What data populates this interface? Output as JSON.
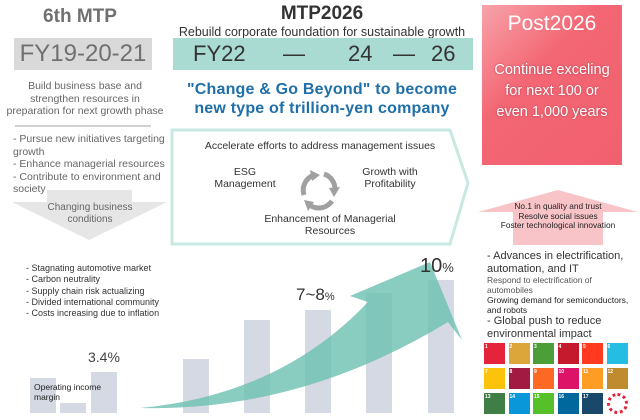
{
  "left": {
    "title": "6th MTP",
    "period": "FY19-20-21",
    "description": "Build business base and strengthen resources in preparation for next growth phase",
    "items": [
      "- Pursue new initiatives targeting growth",
      "- Enhance managerial resources",
      "- Contribute to environment and society"
    ],
    "changing_label": "Changing business conditions",
    "conditions": [
      "- Stagnating automotive market",
      "- Carbon neutrality",
      "- Supply chain risk actualizing",
      "- Divided international community",
      "- Costs increasing due to inflation"
    ]
  },
  "center": {
    "title": "MTP2026",
    "subtitle": "Rebuild corporate foundation for sustainable growth",
    "fy": [
      "FY22",
      "—",
      "24",
      "—",
      "26"
    ],
    "slogan": "\"Change & Go Beyond\" to become new type of trillion-yen company",
    "accelerate": "Accelerate efforts to address management issues",
    "esg": "ESG Management",
    "growth": "Growth with Profitability",
    "enhancement": "Enhancement of Managerial Resources"
  },
  "post": {
    "title": "Post2026",
    "description": "Continue exceling for next 100 or even 1,000 years",
    "goals": [
      "No.1 in quality and trust",
      "Resolve social issues",
      "Foster technological innovation"
    ],
    "trend1": "- Advances in electrification, automation, and IT",
    "trend1_sub1": "Respond to electrification of automobiles",
    "trend1_sub2": "Growing demand for semiconductors, and robots",
    "trend2": "- Global push to reduce environmental impact"
  },
  "margins": {
    "label": "Operating income margin",
    "current": "3.4",
    "mid": "7~8",
    "target": "10",
    "unit": "%"
  },
  "colors": {
    "teal": "#a9dbd3",
    "arrow": "#6cc0b0",
    "post": "#f1606e",
    "bars": "#d4d9e3",
    "slogan": "#1f6fa8"
  },
  "sdg_icons": [
    {
      "n": "1",
      "c": "#e5243b"
    },
    {
      "n": "2",
      "c": "#dda63a"
    },
    {
      "n": "3",
      "c": "#4c9f38"
    },
    {
      "n": "4",
      "c": "#c5192d"
    },
    {
      "n": "5",
      "c": "#ff3a21"
    },
    {
      "n": "6",
      "c": "#26bde2"
    },
    {
      "n": "7",
      "c": "#fcc30b"
    },
    {
      "n": "8",
      "c": "#a21942"
    },
    {
      "n": "9",
      "c": "#fd6925"
    },
    {
      "n": "10",
      "c": "#dd1367"
    },
    {
      "n": "11",
      "c": "#fd9d24"
    },
    {
      "n": "12",
      "c": "#bf8b2e"
    },
    {
      "n": "13",
      "c": "#3f7e44"
    },
    {
      "n": "14",
      "c": "#0a97d9"
    },
    {
      "n": "15",
      "c": "#56c02b"
    },
    {
      "n": "16",
      "c": "#00689d"
    },
    {
      "n": "17",
      "c": "#19486a"
    },
    {
      "n": "",
      "c": "#ffffff"
    }
  ]
}
